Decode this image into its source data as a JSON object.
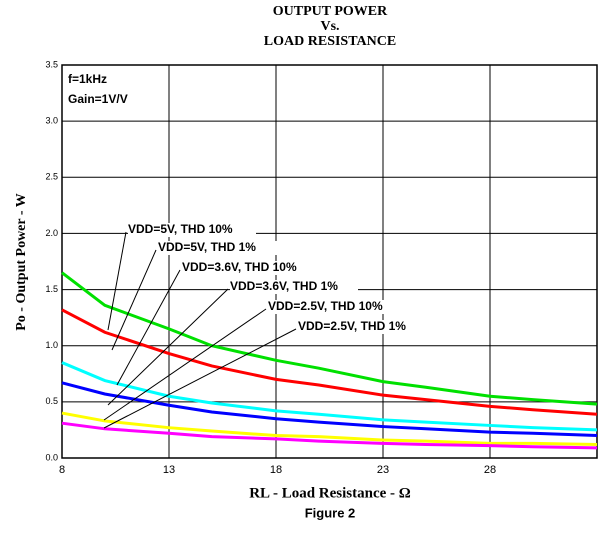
{
  "chart_data": {
    "type": "line",
    "title": [
      "OUTPUT POWER",
      "Vs.",
      "LOAD RESISTANCE"
    ],
    "annotations": [
      "f=1kHz",
      "Gain=1V/V"
    ],
    "xlabel": "RL - Load Resistance - Ω",
    "ylabel": "Po - Output Power - W",
    "caption": "Figure 2",
    "x": [
      8,
      10,
      13,
      15,
      18,
      20,
      23,
      25,
      28,
      30,
      33
    ],
    "series": [
      {
        "name": "VDD=5V, THD 10%",
        "color": "#00e000",
        "values": [
          1.65,
          1.36,
          1.15,
          1.0,
          0.87,
          0.8,
          0.68,
          0.63,
          0.55,
          0.52,
          0.48
        ]
      },
      {
        "name": "VDD=5V, THD 1%",
        "color": "#ff0000",
        "values": [
          1.32,
          1.12,
          0.93,
          0.82,
          0.7,
          0.65,
          0.56,
          0.52,
          0.46,
          0.43,
          0.39
        ]
      },
      {
        "name": "VDD=3.6V, THD 10%",
        "color": "#00ffff",
        "values": [
          0.85,
          0.69,
          0.55,
          0.49,
          0.42,
          0.39,
          0.34,
          0.32,
          0.29,
          0.27,
          0.25
        ]
      },
      {
        "name": "VDD=3.6V, THD 1%",
        "color": "#0000ff",
        "values": [
          0.67,
          0.57,
          0.47,
          0.41,
          0.35,
          0.32,
          0.28,
          0.26,
          0.23,
          0.22,
          0.2
        ]
      },
      {
        "name": "VDD=2.5V, THD 10%",
        "color": "#ffff00",
        "values": [
          0.4,
          0.33,
          0.27,
          0.24,
          0.2,
          0.19,
          0.16,
          0.15,
          0.13,
          0.13,
          0.12
        ]
      },
      {
        "name": "VDD=2.5V, THD 1%",
        "color": "#ff00ff",
        "values": [
          0.31,
          0.26,
          0.22,
          0.19,
          0.17,
          0.15,
          0.13,
          0.12,
          0.11,
          0.1,
          0.09
        ]
      }
    ],
    "xlim": [
      8,
      33
    ],
    "xticks": [
      8,
      13,
      18,
      23,
      28
    ],
    "ylim": [
      0,
      3.5
    ],
    "yticks": [
      {
        "value": 0,
        "label": "0.0"
      },
      0.5,
      {
        "value": 1,
        "label": "1.0"
      },
      1.5,
      {
        "value": 2,
        "label": "2.0"
      },
      2.5,
      {
        "value": 3,
        "label": "3.0"
      },
      3.5
    ],
    "grid": true
  }
}
